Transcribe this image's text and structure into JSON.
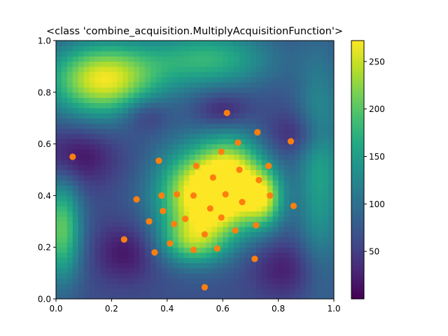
{
  "chart_data": {
    "type": "heatmap",
    "title": "<class 'combine_acquisition.MultiplyAcquisitionFunction'>",
    "xlabel": "",
    "ylabel": "",
    "xlim": [
      0.0,
      1.0
    ],
    "ylim": [
      0.0,
      1.0
    ],
    "x_ticks": [
      "0.0",
      "0.2",
      "0.4",
      "0.6",
      "0.8",
      "1.0"
    ],
    "y_ticks": [
      "0.0",
      "0.2",
      "0.4",
      "0.6",
      "0.8",
      "1.0"
    ],
    "colormap": "viridis",
    "colorbar": {
      "min": 0,
      "max": 272,
      "ticks": [
        "50",
        "100",
        "150",
        "200",
        "250"
      ],
      "tick_values": [
        50,
        100,
        150,
        200,
        250
      ]
    },
    "grid": false,
    "heatmap_resolution": 50,
    "heatmap_features": [
      {
        "cx": 0.17,
        "cy": 0.85,
        "sx": 0.14,
        "sy": 0.1,
        "amp": 200
      },
      {
        "cx": 0.52,
        "cy": 0.4,
        "sx": 0.11,
        "sy": 0.13,
        "amp": 215
      },
      {
        "cx": 0.64,
        "cy": 0.46,
        "sx": 0.08,
        "sy": 0.12,
        "amp": 160
      },
      {
        "cx": 0.75,
        "cy": 0.39,
        "sx": 0.05,
        "sy": 0.08,
        "amp": 140
      },
      {
        "cx": 0.49,
        "cy": 0.22,
        "sx": 0.08,
        "sy": 0.06,
        "amp": 95
      },
      {
        "cx": 0.02,
        "cy": 0.27,
        "sx": 0.05,
        "sy": 0.14,
        "amp": 140
      },
      {
        "cx": 0.55,
        "cy": 0.93,
        "sx": 0.16,
        "sy": 0.08,
        "amp": 110
      },
      {
        "cx": 0.95,
        "cy": 0.5,
        "sx": 0.06,
        "sy": 0.3,
        "amp": 90
      }
    ],
    "heatmap_base": 65,
    "heatmap_dark_spots": [
      {
        "cx": 0.07,
        "cy": 0.55,
        "sx": 0.1,
        "sy": 0.08,
        "amp": 55
      },
      {
        "cx": 0.32,
        "cy": 0.72,
        "sx": 0.06,
        "sy": 0.05,
        "amp": 45
      },
      {
        "cx": 0.6,
        "cy": 0.73,
        "sx": 0.07,
        "sy": 0.05,
        "amp": 50
      },
      {
        "cx": 0.25,
        "cy": 0.18,
        "sx": 0.08,
        "sy": 0.08,
        "amp": 50
      },
      {
        "cx": 0.88,
        "cy": 0.64,
        "sx": 0.08,
        "sy": 0.06,
        "amp": 45
      },
      {
        "cx": 0.83,
        "cy": 0.12,
        "sx": 0.09,
        "sy": 0.08,
        "amp": 45
      }
    ],
    "points_color": "#ff7f0e",
    "points": [
      {
        "x": 0.06,
        "y": 0.55
      },
      {
        "x": 0.245,
        "y": 0.23
      },
      {
        "x": 0.29,
        "y": 0.385
      },
      {
        "x": 0.335,
        "y": 0.3
      },
      {
        "x": 0.355,
        "y": 0.18
      },
      {
        "x": 0.37,
        "y": 0.535
      },
      {
        "x": 0.38,
        "y": 0.4
      },
      {
        "x": 0.385,
        "y": 0.34
      },
      {
        "x": 0.41,
        "y": 0.215
      },
      {
        "x": 0.425,
        "y": 0.29
      },
      {
        "x": 0.435,
        "y": 0.405
      },
      {
        "x": 0.465,
        "y": 0.31
      },
      {
        "x": 0.495,
        "y": 0.19
      },
      {
        "x": 0.495,
        "y": 0.4
      },
      {
        "x": 0.505,
        "y": 0.515
      },
      {
        "x": 0.535,
        "y": 0.25
      },
      {
        "x": 0.535,
        "y": 0.045
      },
      {
        "x": 0.555,
        "y": 0.35
      },
      {
        "x": 0.565,
        "y": 0.47
      },
      {
        "x": 0.58,
        "y": 0.195
      },
      {
        "x": 0.595,
        "y": 0.57
      },
      {
        "x": 0.595,
        "y": 0.315
      },
      {
        "x": 0.61,
        "y": 0.405
      },
      {
        "x": 0.615,
        "y": 0.72
      },
      {
        "x": 0.645,
        "y": 0.265
      },
      {
        "x": 0.655,
        "y": 0.605
      },
      {
        "x": 0.66,
        "y": 0.5
      },
      {
        "x": 0.67,
        "y": 0.375
      },
      {
        "x": 0.715,
        "y": 0.155
      },
      {
        "x": 0.72,
        "y": 0.285
      },
      {
        "x": 0.725,
        "y": 0.645
      },
      {
        "x": 0.73,
        "y": 0.46
      },
      {
        "x": 0.765,
        "y": 0.515
      },
      {
        "x": 0.77,
        "y": 0.4
      },
      {
        "x": 0.845,
        "y": 0.61
      },
      {
        "x": 0.855,
        "y": 0.36
      }
    ]
  }
}
